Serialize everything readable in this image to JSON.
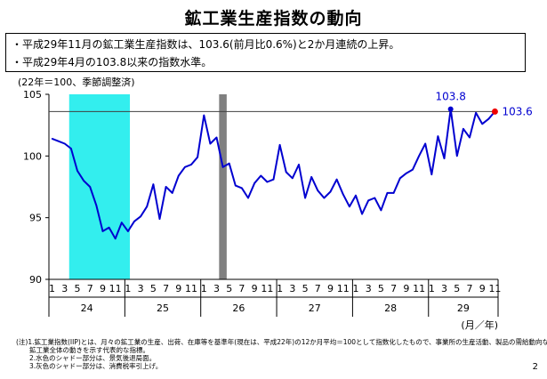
{
  "page": {
    "title": "鉱工業生産指数の動向",
    "bullets": [
      "・平成29年11月の鉱工業生産指数は、103.6(前月比0.6%)と2か月連続の上昇。",
      "・平成29年4月の103.8以来の指数水準。"
    ],
    "unit_note": "(22年＝100、季節調整済)",
    "axis_unit": "(月／年)",
    "notes": [
      "(注)1.鉱工業指数(IIP)とは、月々の鉱工業の生産、出荷、在庫等を基準年(現在は、平成22年)の12か月平均＝100として指数化したもので、事業所の生産活動、製品の需給動向など",
      "　　鉱工業全体の動きを示す代表的な指標。",
      "　　2.水色のシャドー部分は、景気後退局面。",
      "　　3.灰色のシャドー部分は、消費税率引上げ。"
    ],
    "page_number": "2"
  },
  "chart_data": {
    "type": "line",
    "title": "",
    "xlabel": "(月／年)",
    "ylabel": "(22年＝100、季節調整済)",
    "ylim": [
      90,
      105
    ],
    "yticks": [
      90,
      95,
      100,
      105
    ],
    "month_tick_labels": [
      "1",
      "3",
      "5",
      "7",
      "9",
      "11"
    ],
    "year_labels": [
      "24",
      "25",
      "26",
      "27",
      "28",
      "29"
    ],
    "reference_line": 103.6,
    "recession_shading": {
      "from_index": 3,
      "to_index": 12
    },
    "tax_hike_shading": {
      "index": 27
    },
    "annotations": [
      {
        "index": 63,
        "label": "103.8"
      },
      {
        "index": 70,
        "label": "103.6"
      }
    ],
    "colors": {
      "line": "#0000d0",
      "recession": "#33eeee",
      "tax": "#808080",
      "reference": "#404040",
      "last_point": "#ee0000"
    },
    "series": [
      {
        "values": [
          101.4,
          101.2,
          101.0,
          100.6,
          98.8,
          98.0,
          97.5,
          96.0,
          93.9,
          94.2,
          93.3,
          94.6,
          93.9,
          94.7,
          95.1,
          95.9,
          97.7,
          94.9,
          97.5,
          97.0,
          98.4,
          99.1,
          99.3,
          99.9,
          103.3,
          101.0,
          101.5,
          99.1,
          99.4,
          97.6,
          97.4,
          96.6,
          97.8,
          98.4,
          97.9,
          98.1,
          100.9,
          98.7,
          98.2,
          99.3,
          96.6,
          98.3,
          97.2,
          96.6,
          97.1,
          98.1,
          96.9,
          95.9,
          96.8,
          95.3,
          96.4,
          96.6,
          95.6,
          97.0,
          97.0,
          98.2,
          98.6,
          98.9,
          100.0,
          101.0,
          98.5,
          101.6,
          99.8,
          103.8,
          100.0,
          102.2,
          101.5,
          103.5,
          102.6,
          103.0,
          103.6
        ]
      }
    ]
  }
}
